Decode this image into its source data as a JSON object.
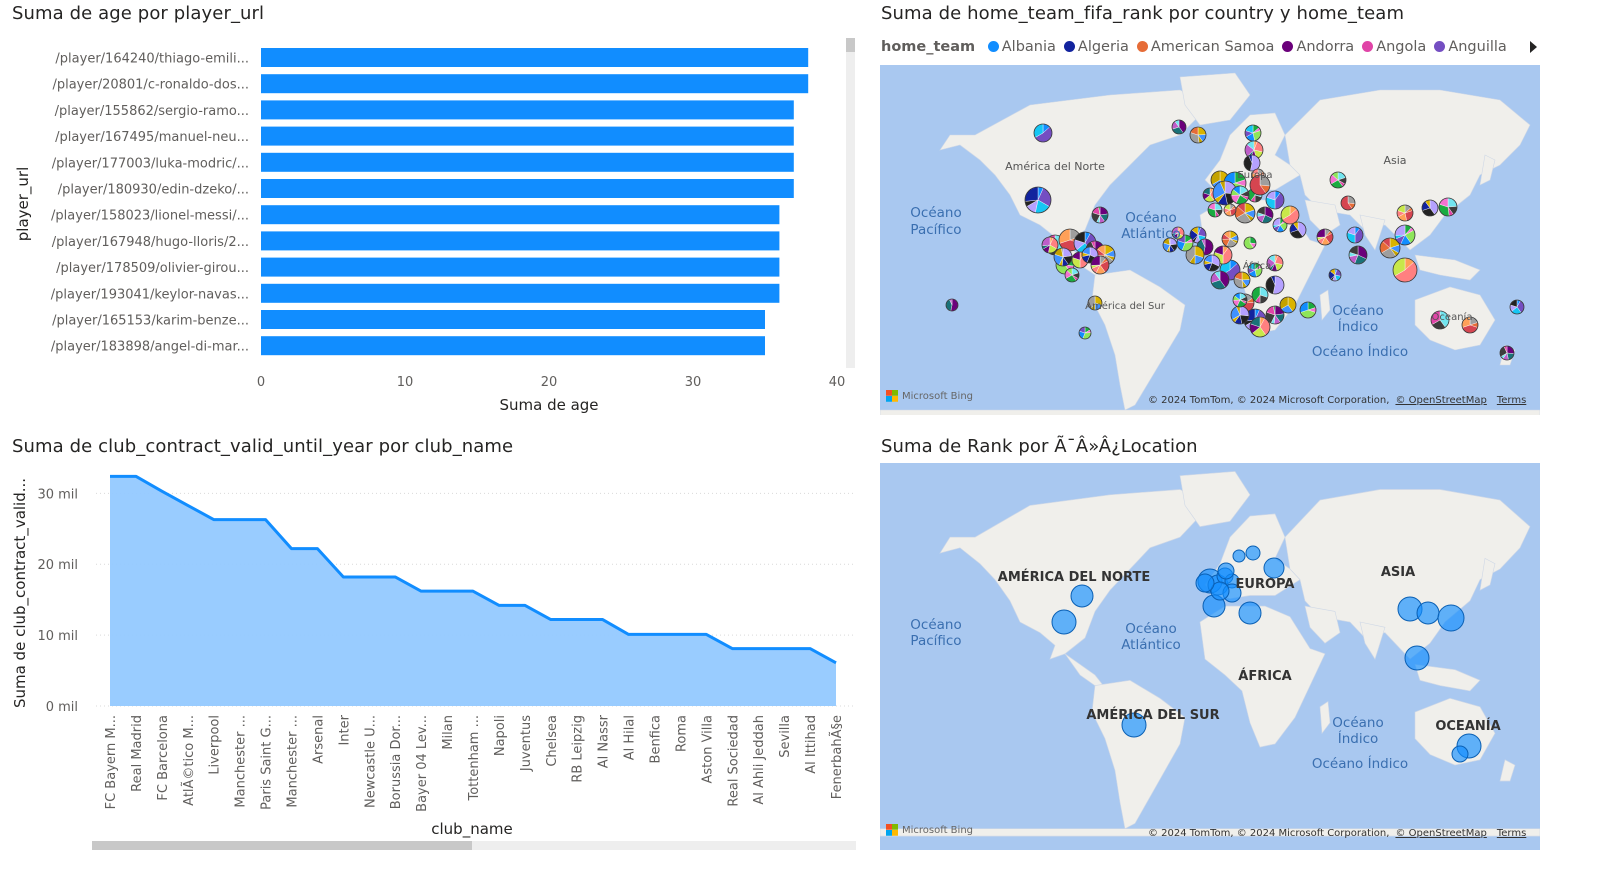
{
  "visuals": {
    "bar": {
      "title": "Suma de age por player_url"
    },
    "map1": {
      "title": "Suma de home_team_fifa_rank por country y home_team"
    },
    "area": {
      "title": "Suma de club_contract_valid_until_year por club_name"
    },
    "map2": {
      "title": "Suma de Rank por Ã¯Â»Â¿Location"
    }
  },
  "map1": {
    "legend_title": "home_team",
    "legend": [
      {
        "name": "Albania",
        "color": "#118dff"
      },
      {
        "name": "Algeria",
        "color": "#12239e"
      },
      {
        "name": "American Samoa",
        "color": "#e66c37"
      },
      {
        "name": "Andorra",
        "color": "#6b007b"
      },
      {
        "name": "Angola",
        "color": "#e044a7"
      },
      {
        "name": "Anguilla",
        "color": "#744ec2"
      }
    ],
    "labels": {
      "na": "América del Norte",
      "asia": "Asia",
      "europa": "Europa",
      "africa": "África",
      "sa": "América del Sur",
      "oceania": "Oceanía",
      "pac1": "Océano",
      "pac2": "Pacífico",
      "atl1": "Océano",
      "atl2": "Atlántico",
      "ind1": "Océano",
      "ind2": "Índico",
      "ind3": "Océano Índico"
    }
  },
  "map2": {
    "labels": {
      "na": "AMÉRICA DEL NORTE",
      "europa": "EUROPA",
      "asia": "ASIA",
      "africa": "ÁFRICA",
      "sa": "AMÉRICA DEL SUR",
      "oceania": "OCEANÍA",
      "pac1": "Océano",
      "pac2": "Pacífico",
      "atl1": "Océano",
      "atl2": "Atlántico",
      "ind1": "Océano",
      "ind2": "Índico",
      "ind3": "Océano Índico"
    }
  },
  "map_footer": {
    "bing": "Microsoft Bing",
    "copyright": "© 2024 TomTom, © 2024 Microsoft Corporation,",
    "osm": "© OpenStreetMap",
    "terms": "Terms"
  },
  "chart_data": [
    {
      "type": "bar",
      "orientation": "horizontal",
      "title": "Suma de age por player_url",
      "xlabel": "Suma de age",
      "ylabel": "player_url",
      "xlim": [
        0,
        40
      ],
      "xticks": [
        "0",
        "10",
        "20",
        "30",
        "40"
      ],
      "categories": [
        "/player/164240/thiago-emili...",
        "/player/20801/c-ronaldo-dos...",
        "/player/155862/sergio-ramo...",
        "/player/167495/manuel-neu...",
        "/player/177003/luka-modric/...",
        "/player/180930/edin-dzeko/...",
        "/player/158023/lionel-messi/...",
        "/player/167948/hugo-lloris/2...",
        "/player/178509/olivier-girou...",
        "/player/193041/keylor-navas...",
        "/player/165153/karim-benze...",
        "/player/183898/angel-di-mar..."
      ],
      "values": [
        38,
        38,
        37,
        37,
        37,
        37,
        36,
        36,
        36,
        36,
        35,
        35
      ],
      "color": "#118dff"
    },
    {
      "type": "area",
      "title": "Suma de club_contract_valid_until_year por club_name",
      "xlabel": "club_name",
      "ylabel": "Suma de club_contract_valid...",
      "ylim": [
        0,
        34000
      ],
      "yticks": [
        {
          "v": 0,
          "label": "0 mil"
        },
        {
          "v": 10000,
          "label": "10 mil"
        },
        {
          "v": 20000,
          "label": "20 mil"
        },
        {
          "v": 30000,
          "label": "30 mil"
        }
      ],
      "categories": [
        "FC Bayern M...",
        "Real Madrid",
        "FC Barcelona",
        "AtlÃ©tico M...",
        "Liverpool",
        "Manchester ...",
        "Paris Saint G...",
        "Manchester ...",
        "Arsenal",
        "Inter",
        "Newcastle U...",
        "Borussia Dor...",
        "Bayer 04 Lev...",
        "Milan",
        "Tottenham ...",
        "Napoli",
        "Juventus",
        "Chelsea",
        "RB Leipzig",
        "Al Nassr",
        "Al Hilal",
        "Benfica",
        "Roma",
        "Aston Villa",
        "Real Sociedad",
        "Al Ahli Jeddah",
        "Sevilla",
        "Al Ittihad",
        "FenerbahÃ§e"
      ],
      "values": [
        32400,
        32400,
        30300,
        28300,
        26300,
        26300,
        26300,
        22200,
        22200,
        18200,
        18200,
        18200,
        16200,
        16200,
        16200,
        14200,
        14200,
        12200,
        12200,
        12200,
        10100,
        10100,
        10100,
        10100,
        8100,
        8100,
        8100,
        8100,
        6100
      ],
      "color": "#118dff"
    }
  ]
}
